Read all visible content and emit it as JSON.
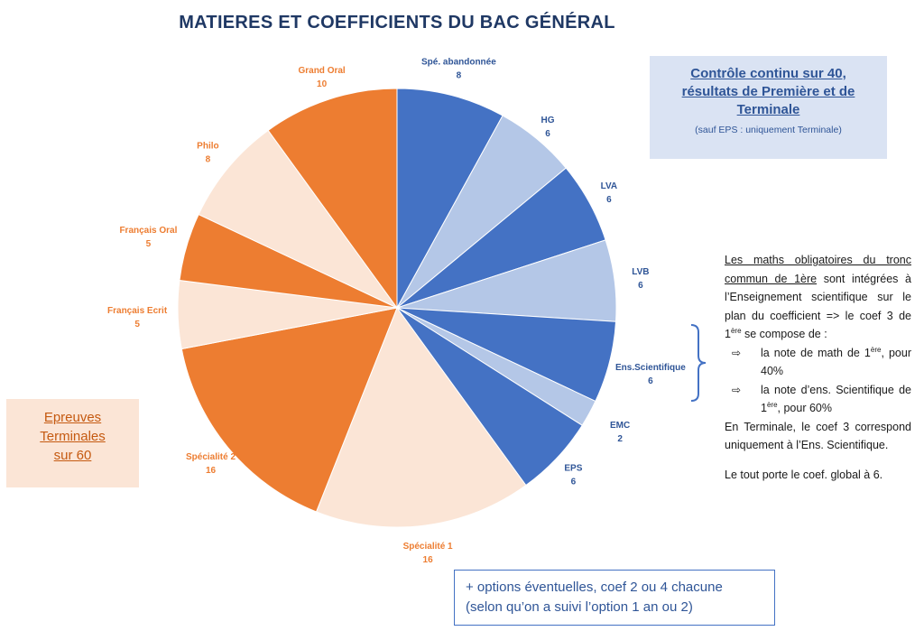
{
  "page": {
    "title": "MATIERES ET COEFFICIENTS DU BAC GÉNÉRAL"
  },
  "colors": {
    "dark_blue": "#4472c4",
    "light_blue": "#b4c7e7",
    "dark_orange": "#ed7d31",
    "light_orange": "#fbe5d6",
    "label_blue": "#2f5597",
    "label_orange": "#ed7d31"
  },
  "chart_data": {
    "type": "pie",
    "title": "MATIERES ET COEFFICIENTS DU BAC GÉNÉRAL",
    "slices": [
      {
        "label": "Spé. abandonnée",
        "value": 8,
        "color": "#4472c4",
        "group": "controle-continu"
      },
      {
        "label": "HG",
        "value": 6,
        "color": "#b4c7e7",
        "group": "controle-continu"
      },
      {
        "label": "LVA",
        "value": 6,
        "color": "#4472c4",
        "group": "controle-continu"
      },
      {
        "label": "LVB",
        "value": 6,
        "color": "#b4c7e7",
        "group": "controle-continu"
      },
      {
        "label": "Ens.Scientifique",
        "value": 6,
        "color": "#4472c4",
        "group": "controle-continu"
      },
      {
        "label": "EMC",
        "value": 2,
        "color": "#b4c7e7",
        "group": "controle-continu"
      },
      {
        "label": "EPS",
        "value": 6,
        "color": "#4472c4",
        "group": "controle-continu"
      },
      {
        "label": "Spécialité 1",
        "value": 16,
        "color": "#fbe5d6",
        "group": "epreuves-terminales"
      },
      {
        "label": "Spécialité 2",
        "value": 16,
        "color": "#ed7d31",
        "group": "epreuves-terminales"
      },
      {
        "label": "Français Ecrit",
        "value": 5,
        "color": "#fbe5d6",
        "group": "epreuves-terminales"
      },
      {
        "label": "Français Oral",
        "value": 5,
        "color": "#ed7d31",
        "group": "epreuves-terminales"
      },
      {
        "label": "Philo",
        "value": 8,
        "color": "#fbe5d6",
        "group": "epreuves-terminales"
      },
      {
        "label": "Grand Oral",
        "value": 10,
        "color": "#ed7d31",
        "group": "epreuves-terminales"
      }
    ],
    "start": "12 o'clock, clockwise"
  },
  "controle_continu_box": {
    "main": "Contrôle continu sur 40, résultats de Première et de Terminale",
    "sub": "(sauf EPS : uniquement Terminale)"
  },
  "epreuves_box": {
    "text": "Epreuves Terminales sur 60"
  },
  "note": {
    "intro_underlined": "Les maths obligatoires du tronc commun de 1ère",
    "intro_rest": " sont intégrées à l’Enseignement scientifique sur le plan du coefficient => le coef 3 de 1",
    "intro_sup": "ère",
    "intro_end": " se compose de :",
    "bullet_arrow": "⇨",
    "bullet1_a": "la note de math de 1",
    "bullet1_sup": "ère",
    "bullet1_b": ", pour 40%",
    "bullet2_a": "la note d’ens. Scientifique de 1",
    "bullet2_sup": "ère",
    "bullet2_b": ", pour 60%",
    "terminale": "En Terminale, le coef 3 correspond uniquement à l’Ens. Scientifique.",
    "final": "Le tout porte le coef. global à 6."
  },
  "options_box": {
    "line1": "+ options éventuelles, coef 2 ou 4 chacune",
    "line2": "(selon qu’on a suivi l’option 1 an ou 2)"
  }
}
